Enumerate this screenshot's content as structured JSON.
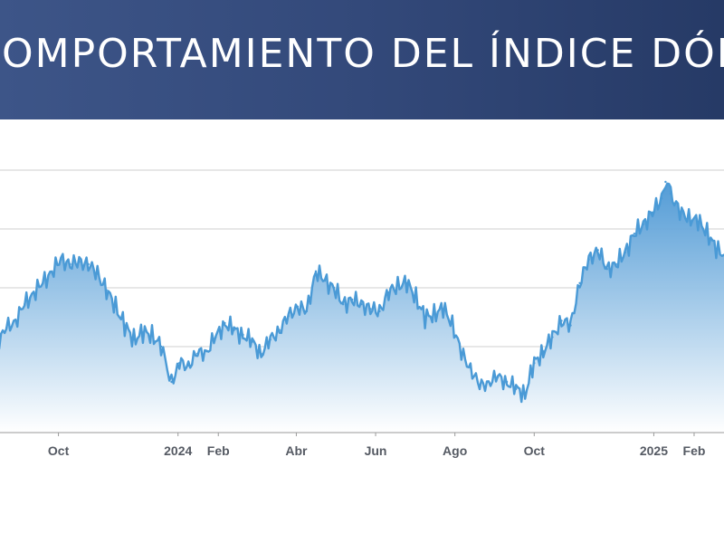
{
  "header": {
    "title": "OMPORTAMIENTO DEL ÍNDICE DÓLA"
  },
  "colors": {
    "banner_start": "#3d5588",
    "banner_end": "#263a66",
    "line": "#4a9ad6",
    "fill_top": "#4b97d4",
    "fill_bottom": "#ffffff",
    "grid": "#cfcfcf",
    "tick_text": "#555a63"
  },
  "chart_data": {
    "type": "area",
    "title": "OMPORTAMIENTO DEL ÍNDICE DÓLA",
    "xlabel": "",
    "ylabel": "",
    "x_range": [
      "2023-08-08",
      "2025-02-24"
    ],
    "ylim": [
      99,
      110
    ],
    "yticks_gridlines": [
      100,
      102.5,
      105,
      107.5,
      110
    ],
    "y_tick_labels_visible": false,
    "grid": true,
    "legend": "none",
    "x_ticks": [
      {
        "label": "Oct",
        "date": "2023-10-01"
      },
      {
        "label": "2024",
        "date": "2024-01-01"
      },
      {
        "label": "Feb",
        "date": "2024-02-01"
      },
      {
        "label": "Abr",
        "date": "2024-04-01"
      },
      {
        "label": "Jun",
        "date": "2024-06-01"
      },
      {
        "label": "Ago",
        "date": "2024-08-01"
      },
      {
        "label": "Oct",
        "date": "2024-10-01"
      },
      {
        "label": "2025",
        "date": "2025-01-01"
      },
      {
        "label": "Feb",
        "date": "2025-02-01"
      }
    ],
    "series": [
      {
        "points": [
          [
            "2023-08-08",
            102.2
          ],
          [
            "2023-08-15",
            102.6
          ],
          [
            "2023-08-22",
            103.3
          ],
          [
            "2023-08-29",
            103.6
          ],
          [
            "2023-09-05",
            104.3
          ],
          [
            "2023-09-12",
            104.8
          ],
          [
            "2023-09-19",
            105.2
          ],
          [
            "2023-09-26",
            105.7
          ],
          [
            "2023-10-03",
            106.2
          ],
          [
            "2023-10-10",
            106.0
          ],
          [
            "2023-10-17",
            106.1
          ],
          [
            "2023-10-24",
            106.0
          ],
          [
            "2023-10-31",
            105.6
          ],
          [
            "2023-11-07",
            104.9
          ],
          [
            "2023-11-14",
            104.2
          ],
          [
            "2023-11-21",
            103.4
          ],
          [
            "2023-11-28",
            102.8
          ],
          [
            "2023-12-05",
            103.1
          ],
          [
            "2023-12-12",
            103.0
          ],
          [
            "2023-12-19",
            102.5
          ],
          [
            "2023-12-27",
            101.0
          ],
          [
            "2024-01-02",
            101.8
          ],
          [
            "2024-01-09",
            101.7
          ],
          [
            "2024-01-16",
            102.2
          ],
          [
            "2024-01-23",
            102.3
          ],
          [
            "2024-01-30",
            102.9
          ],
          [
            "2024-02-06",
            103.5
          ],
          [
            "2024-02-13",
            103.2
          ],
          [
            "2024-02-20",
            103.0
          ],
          [
            "2024-02-27",
            102.7
          ],
          [
            "2024-03-05",
            102.2
          ],
          [
            "2024-03-12",
            102.8
          ],
          [
            "2024-03-19",
            103.2
          ],
          [
            "2024-03-26",
            103.8
          ],
          [
            "2024-04-02",
            104.2
          ],
          [
            "2024-04-09",
            104.0
          ],
          [
            "2024-04-16",
            105.7
          ],
          [
            "2024-04-23",
            105.3
          ],
          [
            "2024-04-30",
            105.0
          ],
          [
            "2024-05-07",
            104.3
          ],
          [
            "2024-05-14",
            104.5
          ],
          [
            "2024-05-21",
            104.3
          ],
          [
            "2024-05-28",
            104.1
          ],
          [
            "2024-06-04",
            104.0
          ],
          [
            "2024-06-11",
            104.8
          ],
          [
            "2024-06-18",
            105.1
          ],
          [
            "2024-06-25",
            105.2
          ],
          [
            "2024-07-02",
            104.6
          ],
          [
            "2024-07-09",
            103.7
          ],
          [
            "2024-07-16",
            103.9
          ],
          [
            "2024-07-23",
            104.1
          ],
          [
            "2024-07-30",
            103.5
          ],
          [
            "2024-08-06",
            102.2
          ],
          [
            "2024-08-13",
            101.6
          ],
          [
            "2024-08-20",
            100.8
          ],
          [
            "2024-08-27",
            101.0
          ],
          [
            "2024-09-03",
            101.2
          ],
          [
            "2024-09-10",
            101.0
          ],
          [
            "2024-09-17",
            100.7
          ],
          [
            "2024-09-24",
            100.5
          ],
          [
            "2024-10-01",
            101.8
          ],
          [
            "2024-10-08",
            102.3
          ],
          [
            "2024-10-15",
            102.9
          ],
          [
            "2024-10-22",
            103.6
          ],
          [
            "2024-10-29",
            103.4
          ],
          [
            "2024-11-05",
            105.2
          ],
          [
            "2024-11-12",
            106.2
          ],
          [
            "2024-11-19",
            106.6
          ],
          [
            "2024-11-26",
            105.8
          ],
          [
            "2024-12-03",
            106.0
          ],
          [
            "2024-12-10",
            106.5
          ],
          [
            "2024-12-17",
            107.3
          ],
          [
            "2024-12-24",
            107.7
          ],
          [
            "2024-12-31",
            108.2
          ],
          [
            "2025-01-07",
            108.8
          ],
          [
            "2025-01-10",
            109.5
          ],
          [
            "2025-01-14",
            109.0
          ],
          [
            "2025-01-21",
            108.2
          ],
          [
            "2025-01-28",
            108.0
          ],
          [
            "2025-02-04",
            107.8
          ],
          [
            "2025-02-11",
            107.4
          ],
          [
            "2025-02-18",
            106.6
          ],
          [
            "2025-02-24",
            106.4
          ]
        ]
      }
    ]
  }
}
